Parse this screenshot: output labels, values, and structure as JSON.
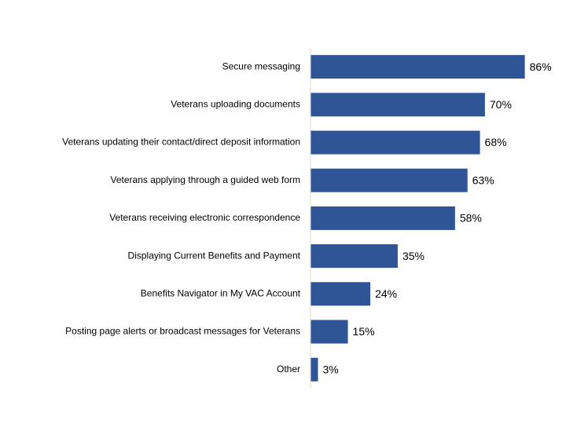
{
  "chart_data": {
    "type": "bar",
    "orientation": "horizontal",
    "categories": [
      "Secure messaging",
      "Veterans uploading documents",
      "Veterans updating their contact/direct deposit information",
      "Veterans applying through a guided web form",
      "Veterans receiving electronic correspondence",
      "Displaying Current Benefits and Payment",
      "Benefits Navigator in My VAC Account",
      "Posting page alerts or broadcast messages for Veterans",
      "Other"
    ],
    "values": [
      86,
      70,
      68,
      63,
      58,
      35,
      24,
      15,
      3
    ],
    "value_labels": [
      "86%",
      "70%",
      "68%",
      "63%",
      "58%",
      "35%",
      "24%",
      "15%",
      "3%"
    ],
    "color": "#2f5597",
    "xlim": [
      0,
      100
    ]
  }
}
